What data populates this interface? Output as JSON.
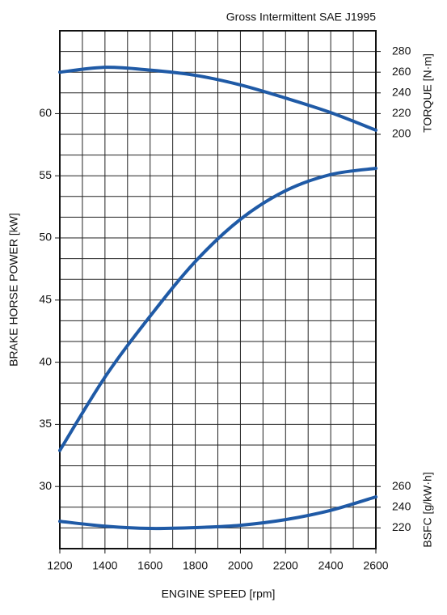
{
  "chart_data": {
    "type": "line",
    "title": "Gross Intermittent SAE J1995",
    "xlabel": "ENGINE SPEED [rpm]",
    "ylabel": "BRAKE HORSE POWER [kW]",
    "y2label": "TORQUE [N·m]",
    "y3label": "BSFC [g/kW·h]",
    "x": [
      1200,
      1400,
      1600,
      1800,
      2000,
      2200,
      2400,
      2600
    ],
    "xlim": [
      1200,
      2600
    ],
    "xticks": [
      1200,
      1400,
      1600,
      1800,
      2000,
      2200,
      2400,
      2600
    ],
    "ylim": [
      25,
      66.67
    ],
    "yticks": [
      30,
      35,
      40,
      45,
      50,
      55,
      60
    ],
    "y2lim": [
      -200,
      300
    ],
    "y2ticks": [
      200,
      220,
      240,
      260,
      280
    ],
    "y3lim": [
      200,
      700
    ],
    "y3ticks": [
      220,
      240,
      260
    ],
    "grid": true,
    "series": [
      {
        "color": "#1f5aa6",
        "axis": "y2",
        "values": [
          260,
          264.7,
          262,
          257,
          247.7,
          235,
          221,
          204
        ]
      },
      {
        "color": "#1f5aa6",
        "axis": "y",
        "values": [
          32.9,
          38.8,
          43.7,
          48.1,
          51.5,
          53.8,
          55.1,
          55.6
        ]
      },
      {
        "color": "#1f5aa6",
        "axis": "y3",
        "values": [
          226.4,
          221.7,
          219.5,
          220.3,
          222.6,
          228,
          237,
          250
        ]
      }
    ]
  }
}
